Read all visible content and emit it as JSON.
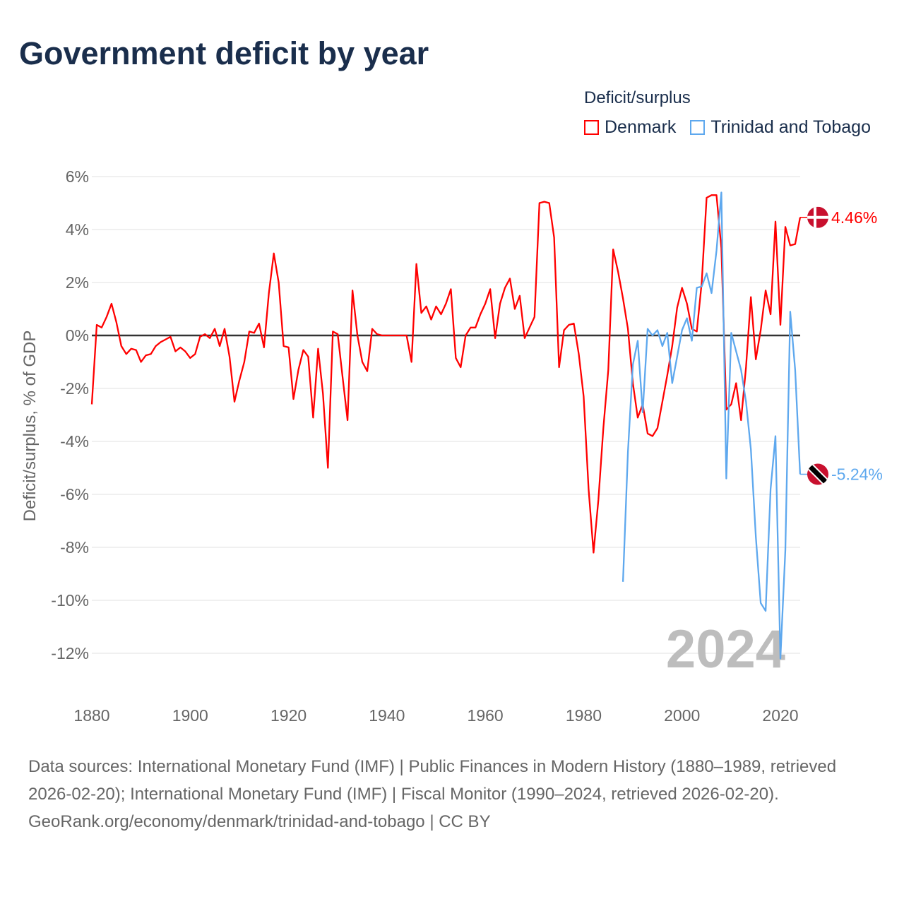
{
  "title": "Government deficit by year",
  "legend": {
    "title": "Deficit/surplus",
    "items": [
      {
        "label": "Denmark",
        "color": "#ff0000"
      },
      {
        "label": "Trinidad and Tobago",
        "color": "#5ea8ee"
      }
    ]
  },
  "year_label": "2024",
  "footer": {
    "sources": "Data sources: International Monetary Fund (IMF) | Public Finances in Modern History (1880–1989, retrieved 2026-02-20); International Monetary Fund (IMF) | Fiscal Monitor (1990–2024, retrieved 2026-02-20).",
    "link": "GeoRank.org/economy/denmark/trinidad-and-tobago | CC BY"
  },
  "chart_data": {
    "type": "line",
    "title": "Government deficit by year",
    "xlabel": "",
    "ylabel": "Deficit/surplus, % of GDP",
    "xlim": [
      1880,
      2024
    ],
    "ylim": [
      -12,
      6
    ],
    "x_ticks": [
      1880,
      1900,
      1920,
      1940,
      1960,
      1980,
      2000,
      2020
    ],
    "x_tick_labels": [
      "1880",
      "1900",
      "1920",
      "1940",
      "1960",
      "1980",
      "2000",
      "2020"
    ],
    "y_ticks": [
      6,
      4,
      2,
      0,
      -2,
      -4,
      -6,
      -8,
      -10,
      -12
    ],
    "y_tick_labels": [
      "6%",
      "4%",
      "2%",
      "0%",
      "-2%",
      "-4%",
      "-6%",
      "-8%",
      "-10%",
      "-12%"
    ],
    "grid": true,
    "legend_position": "top-right",
    "series": [
      {
        "name": "Denmark",
        "color": "#ff0000",
        "start_year": 1880,
        "end_label": "4.46%",
        "values": [
          -2.6,
          0.4,
          0.3,
          0.7,
          1.2,
          0.5,
          -0.4,
          -0.7,
          -0.5,
          -0.55,
          -1.0,
          -0.75,
          -0.7,
          -0.4,
          -0.25,
          -0.15,
          -0.05,
          -0.6,
          -0.45,
          -0.6,
          -0.85,
          -0.7,
          -0.05,
          0.05,
          -0.1,
          0.25,
          -0.4,
          0.25,
          -0.8,
          -2.5,
          -1.7,
          -1.0,
          0.15,
          0.1,
          0.45,
          -0.45,
          1.6,
          3.1,
          2.0,
          -0.4,
          -0.45,
          -2.4,
          -1.3,
          -0.55,
          -0.8,
          -3.1,
          -0.5,
          -2.2,
          -5.0,
          0.15,
          0.05,
          -1.6,
          -3.2,
          1.7,
          0.0,
          -1.0,
          -1.35,
          0.25,
          0.05,
          0,
          0,
          0,
          0,
          0,
          0,
          -1.0,
          2.7,
          0.85,
          1.1,
          0.6,
          1.1,
          0.8,
          1.2,
          1.75,
          -0.85,
          -1.2,
          0,
          0.3,
          0.3,
          0.8,
          1.2,
          1.75,
          -0.1,
          1.2,
          1.8,
          2.15,
          1.0,
          1.5,
          -0.1,
          0.3,
          0.7,
          5.0,
          5.05,
          5.0,
          3.7,
          -1.2,
          0.2,
          0.4,
          0.45,
          -0.7,
          -2.3,
          -5.8,
          -8.2,
          -6.2,
          -3.5,
          -1.3,
          3.25,
          2.4,
          1.4,
          0.25,
          -1.8,
          -3.1,
          -2.6,
          -3.7,
          -3.8,
          -3.5,
          -2.5,
          -1.5,
          -0.4,
          1.05,
          1.8,
          1.2,
          0.25,
          0.15,
          2.0,
          5.2,
          5.3,
          5.3,
          3.3,
          -2.8,
          -2.6,
          -1.8,
          -3.2,
          -1.2,
          1.45,
          -0.9,
          0.2,
          1.7,
          0.8,
          4.3,
          0.4,
          4.1,
          3.4,
          3.45,
          4.46
        ]
      },
      {
        "name": "Trinidad and Tobago",
        "color": "#5ea8ee",
        "start_year": 1988,
        "end_label": "-5.24%",
        "values": [
          -9.3,
          -4.4,
          -1.1,
          -0.2,
          -2.9,
          0.25,
          0.0,
          0.2,
          -0.4,
          0.1,
          -1.8,
          -0.8,
          0.2,
          0.65,
          -0.2,
          1.8,
          1.85,
          2.35,
          1.6,
          3.2,
          5.4,
          -5.4,
          0.1,
          -0.6,
          -1.3,
          -2.5,
          -4.3,
          -7.6,
          -10.1,
          -10.4,
          -5.8,
          -3.8,
          -12.2,
          -8.1,
          0.9,
          -1.3,
          -5.24
        ]
      }
    ]
  }
}
